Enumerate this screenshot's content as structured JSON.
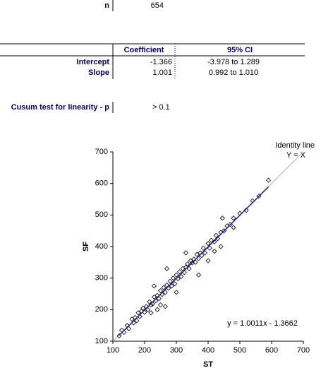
{
  "summary": {
    "n_label": "n",
    "n_value": "654"
  },
  "table": {
    "header": [
      "Coefficient",
      "95% CI"
    ],
    "rows": [
      [
        "Intercept",
        "-1.366",
        "-3.978 to 1.289"
      ],
      [
        "Slope",
        "1.001",
        "0.992 to 1.010"
      ]
    ]
  },
  "cusum": {
    "label": "Cusum test for linearity - p",
    "value": "> 0.1"
  },
  "chart_data": {
    "type": "scatter",
    "x_label": "ST",
    "y_label": "SF",
    "annotations": [
      "Identity line",
      "Y = X"
    ],
    "equation": "y = 1.0011x - 1.3662",
    "regression": {
      "slope": 1.0011,
      "intercept": -1.3662,
      "color": "#1f1fa8"
    },
    "identity_color": "#b0b0b0",
    "xlim": [
      100,
      700
    ],
    "ylim": [
      100,
      700
    ],
    "xticks": [
      100,
      200,
      300,
      400,
      500,
      600,
      700
    ],
    "yticks": [
      100,
      200,
      300,
      400,
      500,
      600,
      700
    ],
    "x": [
      120,
      128,
      135,
      145,
      150,
      160,
      165,
      170,
      175,
      180,
      185,
      190,
      195,
      200,
      205,
      210,
      215,
      220,
      225,
      230,
      235,
      240,
      245,
      250,
      255,
      260,
      265,
      270,
      275,
      280,
      285,
      290,
      295,
      300,
      305,
      310,
      315,
      320,
      325,
      330,
      335,
      340,
      345,
      350,
      355,
      360,
      365,
      370,
      375,
      380,
      385,
      390,
      400,
      405,
      410,
      420,
      425,
      430,
      440,
      450,
      460,
      470,
      480,
      500,
      520,
      540,
      560,
      590,
      270,
      265,
      300,
      240,
      330,
      220,
      230,
      250,
      400,
      420,
      440,
      370,
      445,
      480
    ],
    "series": [
      {
        "color": "#000000",
        "values": [
          117,
          135,
          128,
          150,
          140,
          170,
          158,
          175,
          165,
          190,
          178,
          195,
          205,
          192,
          210,
          200,
          225,
          215,
          218,
          240,
          228,
          245,
          235,
          260,
          248,
          270,
          255,
          278,
          268,
          290,
          275,
          300,
          282,
          310,
          298,
          320,
          305,
          330,
          318,
          335,
          345,
          330,
          355,
          348,
          360,
          350,
          375,
          362,
          380,
          372,
          395,
          380,
          410,
          395,
          420,
          415,
          435,
          425,
          445,
          450,
          465,
          470,
          490,
          505,
          515,
          545,
          560,
          610,
          330,
          210,
          255,
          200,
          380,
          190,
          275,
          215,
          355,
          385,
          400,
          310,
          490,
          460
        ]
      }
    ]
  }
}
